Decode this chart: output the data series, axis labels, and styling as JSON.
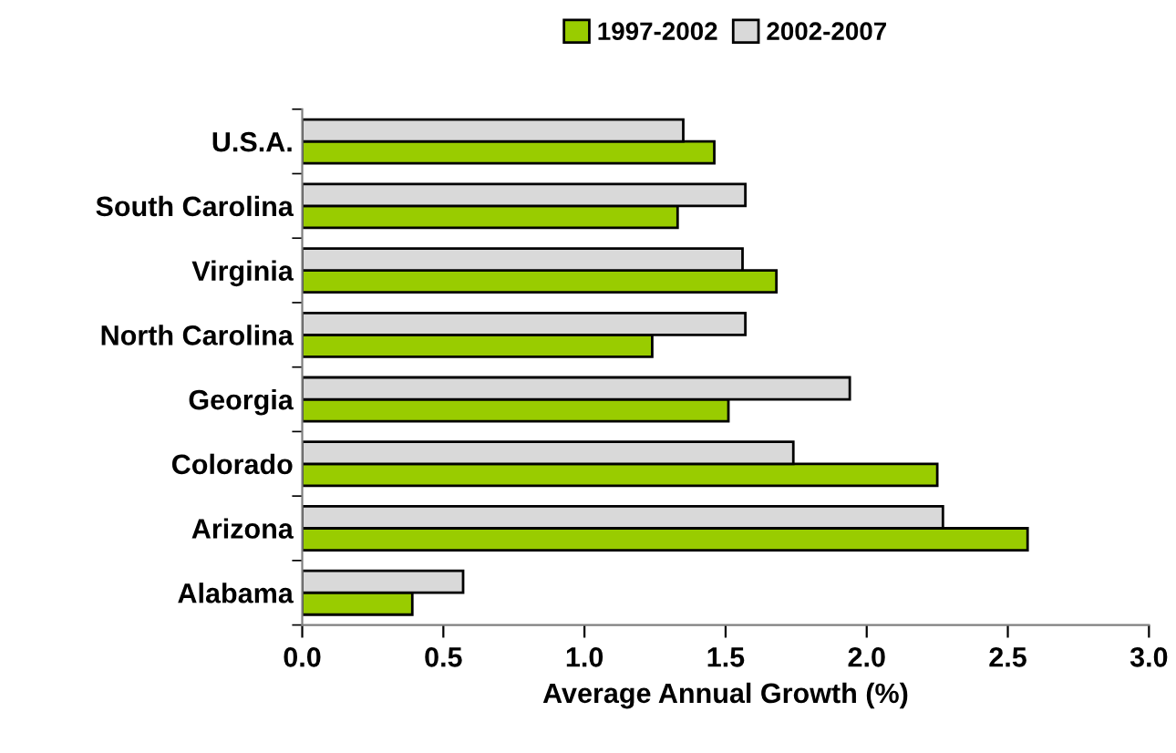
{
  "chart_data": {
    "type": "bar",
    "orientation": "horizontal",
    "xlabel": "Average Annual Growth (%)",
    "categories": [
      "U.S.A.",
      "South Carolina",
      "Virginia",
      "North Carolina",
      "Georgia",
      "Colorado",
      "Arizona",
      "Alabama"
    ],
    "series": [
      {
        "name": "1997-2002",
        "color": "#99cc00",
        "values": [
          1.46,
          1.33,
          1.68,
          1.24,
          1.51,
          2.25,
          2.57,
          0.39
        ]
      },
      {
        "name": "2002-2007",
        "color": "#d9d9d9",
        "values": [
          1.35,
          1.57,
          1.56,
          1.57,
          1.94,
          1.74,
          2.27,
          0.57
        ]
      }
    ],
    "xlim": [
      0,
      3.0
    ],
    "xticks": [
      {
        "value": 0,
        "label": "0.0"
      },
      {
        "value": 0.5,
        "label": "0.5"
      },
      {
        "value": 1.0,
        "label": "1.0"
      },
      {
        "value": 1.5,
        "label": "1.5"
      },
      {
        "value": 2.0,
        "label": "2.0"
      },
      {
        "value": 2.5,
        "label": "2.5"
      },
      {
        "value": 3.0,
        "label": "3.0"
      }
    ],
    "grid": false,
    "legend": "top"
  }
}
